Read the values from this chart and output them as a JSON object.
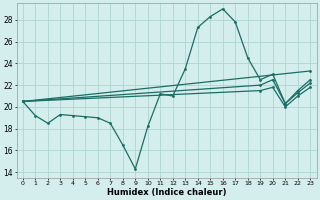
{
  "xlabel": "Humidex (Indice chaleur)",
  "xlim": [
    -0.5,
    23.5
  ],
  "ylim": [
    13.5,
    29.5
  ],
  "xticks": [
    0,
    1,
    2,
    3,
    4,
    5,
    6,
    7,
    8,
    9,
    10,
    11,
    12,
    13,
    14,
    15,
    16,
    17,
    18,
    19,
    20,
    21,
    22,
    23
  ],
  "yticks": [
    14,
    16,
    18,
    20,
    22,
    24,
    26,
    28
  ],
  "background_color": "#d4eeed",
  "grid_color": "#aed4d0",
  "line_color": "#1a6e65",
  "line1_x": [
    0,
    1,
    2,
    3,
    4,
    5,
    6,
    7,
    8,
    9,
    10,
    11,
    12,
    13,
    14,
    15,
    16,
    17,
    18,
    19,
    20,
    21,
    22,
    23
  ],
  "line1_y": [
    20.5,
    19.2,
    18.5,
    19.3,
    19.2,
    19.1,
    19.0,
    18.5,
    16.5,
    14.3,
    18.2,
    21.2,
    21.0,
    23.5,
    27.3,
    28.3,
    29.0,
    27.8,
    24.5,
    22.5,
    23.0,
    20.3,
    21.5,
    22.5
  ],
  "line2_x": [
    0,
    23
  ],
  "line2_y": [
    20.5,
    23.3
  ],
  "line3_x": [
    0,
    19,
    20,
    21,
    22,
    23
  ],
  "line3_y": [
    20.5,
    22.0,
    22.5,
    20.3,
    21.3,
    22.2
  ],
  "line4_x": [
    0,
    19,
    20,
    21,
    22,
    23
  ],
  "line4_y": [
    20.5,
    21.5,
    21.8,
    20.0,
    21.0,
    21.8
  ]
}
